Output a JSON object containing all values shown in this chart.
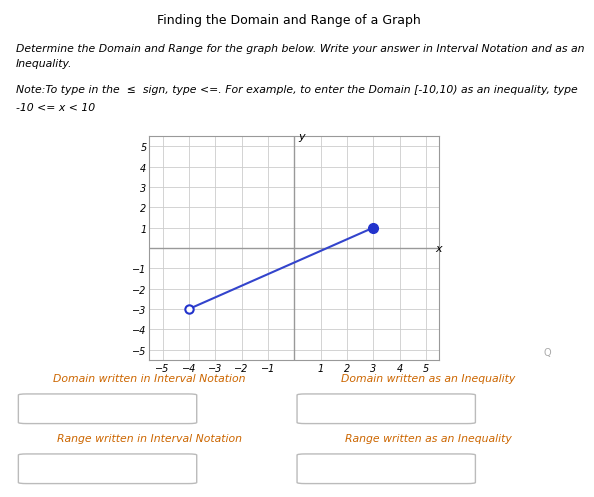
{
  "title": "Finding the Domain and Range of a Graph",
  "instruction_text": "Determine the Domain and Range for the graph below. Write your answer in Interval Notation and as an\nInequality.\n\nNote:To type in the ≤ sign, type <=. For example, to enter the Domain [-10,10) as an inequality, type\n-10 <= x < 10",
  "graph_xlim": [
    -5.5,
    5.5
  ],
  "graph_ylim": [
    -5.5,
    5.5
  ],
  "xticks": [
    -5,
    -4,
    -3,
    -2,
    -1,
    1,
    2,
    3,
    4,
    5
  ],
  "yticks": [
    -5,
    -4,
    -3,
    -2,
    -1,
    1,
    2,
    3,
    4,
    5
  ],
  "line_x": [
    -4,
    3
  ],
  "line_y": [
    -3,
    1
  ],
  "open_point": [
    -4,
    -3
  ],
  "closed_point": [
    3,
    1
  ],
  "line_color": "#3344cc",
  "point_color": "#2233cc",
  "xlabel": "x",
  "ylabel": "y",
  "domain_interval_label": "Domain written in Interval Notation",
  "domain_inequality_label": "Domain written as an Inequality",
  "range_interval_label": "Range written in Interval Notation",
  "range_inequality_label": "Range written as an Inequality",
  "label_color": "#cc6600",
  "border_color": "#999999",
  "grid_color": "#cccccc",
  "axis_color": "#999999",
  "title_fontsize": 9,
  "instr_fontsize": 7.8,
  "label_fontsize": 7.8
}
